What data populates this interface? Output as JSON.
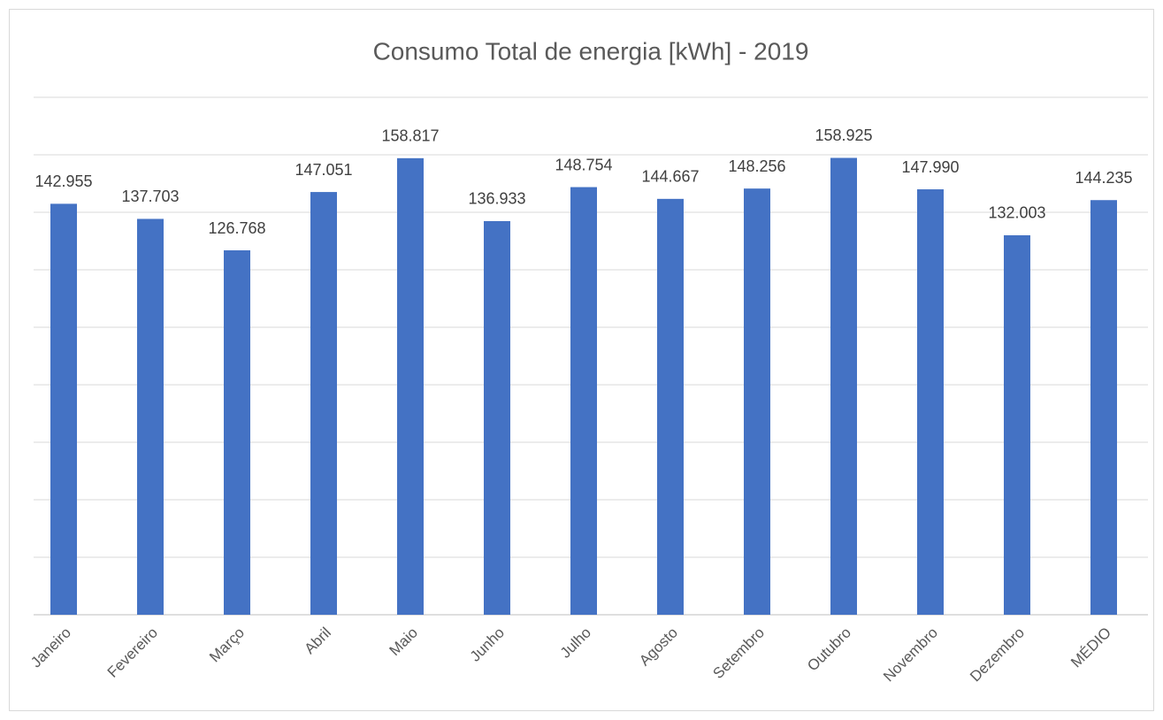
{
  "chart_data": {
    "type": "bar",
    "title": "Consumo Total de energia [kWh] - 2019",
    "categories": [
      "Janeiro",
      "Fevereiro",
      "Março",
      "Abril",
      "Maio",
      "Junho",
      "Julho",
      "Agosto",
      "Setembro",
      "Outubro",
      "Novembro",
      "Dezembro",
      "MÉDIO"
    ],
    "values": [
      142955,
      137703,
      126768,
      147051,
      158817,
      136933,
      148754,
      144667,
      148256,
      158925,
      147990,
      132003,
      144235
    ],
    "value_labels": [
      "142.955",
      "137.703",
      "126.768",
      "147.051",
      "158.817",
      "136.933",
      "148.754",
      "144.667",
      "148.256",
      "158.925",
      "147.990",
      "132.003",
      "144.235"
    ],
    "color": "#4472c4",
    "ylim": [
      0,
      180000
    ],
    "yticks": [
      0,
      20000,
      40000,
      60000,
      80000,
      100000,
      120000,
      140000,
      160000,
      180000
    ],
    "grid": true
  }
}
